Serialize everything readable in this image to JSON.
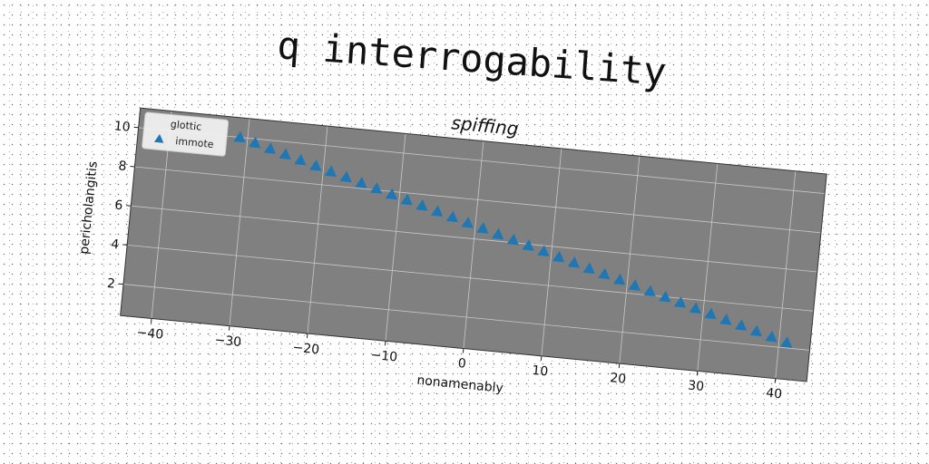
{
  "suptitle": "q interrogability",
  "chart_data": {
    "type": "scatter",
    "title": "spiffing",
    "xlabel": "nonamenably",
    "ylabel": "pericholangitis",
    "xlim": [
      -44,
      44
    ],
    "ylim": [
      0.4,
      11.0
    ],
    "xticks": [
      -40,
      -30,
      -20,
      -10,
      0,
      10,
      20,
      30,
      40
    ],
    "yticks": [
      2,
      4,
      6,
      8,
      10
    ],
    "grid": true,
    "plot_background": "#808080",
    "legend": {
      "title": "glottic",
      "placement": "top-left"
    },
    "series": [
      {
        "name": "immote",
        "marker": "triangle-up",
        "color": "#1f77b4",
        "x": [
          -31.0,
          -29.0,
          -27.0,
          -25.0,
          -23.0,
          -21.0,
          -19.0,
          -17.0,
          -15.0,
          -13.0,
          -11.0,
          -9.0,
          -7.0,
          -5.0,
          -3.0,
          -1.0,
          1.0,
          3.0,
          5.0,
          7.0,
          9.0,
          11.0,
          13.0,
          15.0,
          17.0,
          19.0,
          21.0,
          23.0,
          25.0,
          27.0,
          29.0,
          31.0,
          33.0,
          35.0,
          37.0,
          39.0,
          41.0
        ],
        "y": [
          10.0,
          9.79,
          9.57,
          9.36,
          9.14,
          8.93,
          8.71,
          8.5,
          8.28,
          8.07,
          7.85,
          7.64,
          7.43,
          7.21,
          7.0,
          6.78,
          6.57,
          6.35,
          6.14,
          5.92,
          5.71,
          5.49,
          5.28,
          5.06,
          4.85,
          4.64,
          4.42,
          4.21,
          3.99,
          3.78,
          3.56,
          3.35,
          3.13,
          2.92,
          2.7,
          2.49,
          2.27
        ]
      }
    ]
  }
}
